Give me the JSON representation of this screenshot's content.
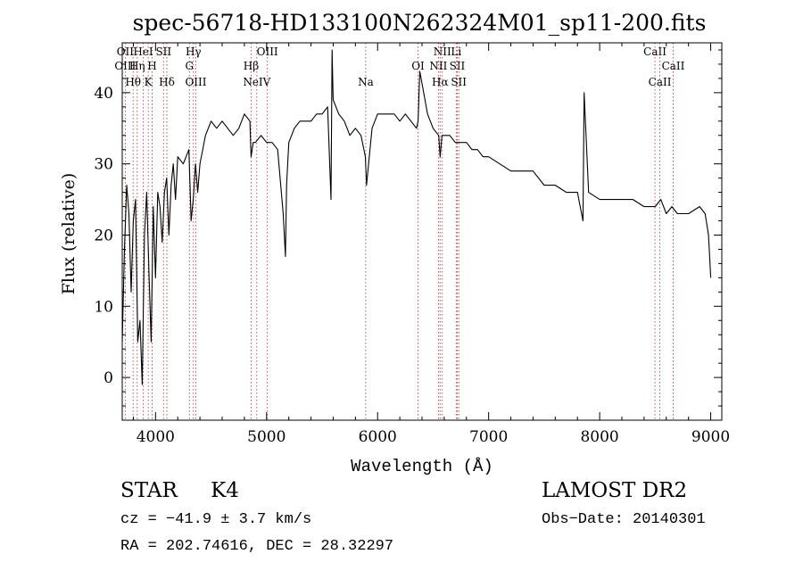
{
  "chart_data": {
    "type": "line",
    "title": "spec-56718-HD133100N262324M01_sp11-200.fits",
    "xlabel": "Wavelength (Å)",
    "ylabel": "Flux (relative)",
    "xlim": [
      3700,
      9100
    ],
    "ylim": [
      -6,
      47
    ],
    "x_ticks": [
      4000,
      5000,
      6000,
      7000,
      8000,
      9000
    ],
    "y_ticks": [
      0,
      10,
      20,
      30,
      40
    ],
    "grid": false,
    "series": [
      {
        "name": "spectrum",
        "x": [
          3700,
          3720,
          3740,
          3760,
          3780,
          3800,
          3820,
          3840,
          3860,
          3880,
          3900,
          3920,
          3940,
          3960,
          3980,
          4000,
          4020,
          4040,
          4060,
          4080,
          4100,
          4120,
          4140,
          4160,
          4180,
          4200,
          4250,
          4300,
          4320,
          4340,
          4360,
          4380,
          4400,
          4450,
          4500,
          4550,
          4600,
          4650,
          4700,
          4750,
          4800,
          4850,
          4860,
          4880,
          4900,
          4950,
          5000,
          5050,
          5100,
          5150,
          5170,
          5180,
          5200,
          5250,
          5300,
          5350,
          5400,
          5450,
          5500,
          5550,
          5580,
          5590,
          5600,
          5650,
          5700,
          5750,
          5800,
          5850,
          5890,
          5900,
          5950,
          6000,
          6050,
          6100,
          6150,
          6200,
          6250,
          6300,
          6350,
          6365,
          6380,
          6450,
          6500,
          6550,
          6563,
          6580,
          6600,
          6650,
          6700,
          6750,
          6800,
          6850,
          6900,
          6950,
          7000,
          7100,
          7200,
          7300,
          7400,
          7500,
          7600,
          7700,
          7800,
          7850,
          7860,
          7900,
          8000,
          8100,
          8200,
          8300,
          8400,
          8500,
          8550,
          8600,
          8650,
          8700,
          8800,
          8900,
          8950,
          8980,
          9000
        ],
        "y": [
          5,
          18,
          27,
          23,
          12,
          22,
          25,
          5,
          8,
          -1,
          20,
          26,
          15,
          5,
          24,
          14,
          26,
          24,
          19,
          26,
          28,
          20,
          27,
          30,
          25,
          31,
          30,
          32,
          22,
          25,
          30,
          26,
          30,
          34,
          36,
          35,
          36,
          35,
          34,
          35,
          37,
          36,
          31,
          33,
          33,
          34,
          33,
          33,
          32,
          23,
          17,
          27,
          33,
          35,
          36,
          36,
          36,
          37,
          37,
          38,
          25,
          46,
          39,
          37,
          36,
          34,
          35,
          34,
          31,
          27,
          35,
          37,
          37,
          37,
          37,
          36,
          37,
          36,
          35,
          36,
          43,
          37,
          35,
          34,
          31,
          34,
          34,
          34,
          33,
          33,
          33,
          32,
          32,
          31,
          31,
          30,
          29,
          29,
          29,
          27,
          27,
          26,
          26,
          22,
          40,
          26,
          25,
          25,
          25,
          25,
          24,
          24,
          25,
          23,
          24,
          23,
          23,
          24,
          23,
          20,
          14
        ]
      }
    ],
    "line_markers": [
      {
        "label": "OII",
        "x": 3727,
        "row": 1
      },
      {
        "label": "OIII",
        "x": 3727,
        "row": 2
      },
      {
        "label": "Hθ",
        "x": 3798,
        "row": 3
      },
      {
        "label": "HeI",
        "x": 3889,
        "row": 1
      },
      {
        "label": "Hη",
        "x": 3835,
        "row": 2
      },
      {
        "label": "K",
        "x": 3934,
        "row": 3
      },
      {
        "label": "SII",
        "x": 4072,
        "row": 1
      },
      {
        "label": "H",
        "x": 3969,
        "row": 2
      },
      {
        "label": "Hδ",
        "x": 4102,
        "row": 3
      },
      {
        "label": "Hγ",
        "x": 4341,
        "row": 1
      },
      {
        "label": "G",
        "x": 4305,
        "row": 2
      },
      {
        "label": "OIII",
        "x": 4363,
        "row": 3
      },
      {
        "label": "OIII",
        "x": 5007,
        "row": 1
      },
      {
        "label": "Hβ",
        "x": 4861,
        "row": 2
      },
      {
        "label": "NeIV",
        "x": 4912,
        "row": 3
      },
      {
        "label": "Na",
        "x": 5893,
        "row": 3
      },
      {
        "label": "OI",
        "x": 6364,
        "row": 2
      },
      {
        "label": "NII",
        "x": 6583,
        "row": 1
      },
      {
        "label": "Li",
        "x": 6708,
        "row": 1
      },
      {
        "label": "NII",
        "x": 6548,
        "row": 2
      },
      {
        "label": "SII",
        "x": 6717,
        "row": 2
      },
      {
        "label": "Hα",
        "x": 6563,
        "row": 3
      },
      {
        "label": "SII",
        "x": 6731,
        "row": 3
      },
      {
        "label": "CaII",
        "x": 8498,
        "row": 1
      },
      {
        "label": "CaII",
        "x": 8662,
        "row": 2
      },
      {
        "label": "CaII",
        "x": 8542,
        "row": 3
      }
    ]
  },
  "info": {
    "class": "STAR",
    "subclass": "K4",
    "cz": "cz = −41.9 ± 3.7 km/s",
    "coords": "RA = 202.74616, DEC =  28.32297",
    "survey": "LAMOST DR2",
    "obs_date": "Obs−Date: 20140301"
  },
  "colors": {
    "axis": "#000000",
    "spectrum": "#000000",
    "marker_line": "#b03030"
  }
}
